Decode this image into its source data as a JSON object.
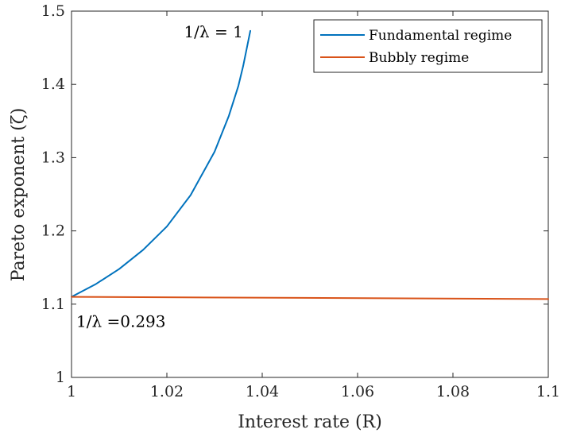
{
  "chart_data": {
    "type": "line",
    "xlabel": "Interest rate (R)",
    "ylabel": "Pareto exponent (ζ)",
    "xlim": [
      1.0,
      1.1
    ],
    "ylim": [
      1.0,
      1.5
    ],
    "xticks": [
      "1",
      "1.02",
      "1.04",
      "1.06",
      "1.08",
      "1.1"
    ],
    "yticks": [
      "1",
      "1.1",
      "1.2",
      "1.3",
      "1.4",
      "1.5"
    ],
    "grid": false,
    "legend": "top-right",
    "series": [
      {
        "name": "Fundamental regime",
        "color": "#0072BD",
        "x": [
          1.0,
          1.005,
          1.01,
          1.015,
          1.02,
          1.025,
          1.03,
          1.033,
          1.035,
          1.036,
          1.0375
        ],
        "y": [
          1.11,
          1.127,
          1.148,
          1.174,
          1.206,
          1.249,
          1.308,
          1.357,
          1.398,
          1.425,
          1.473
        ]
      },
      {
        "name": "Bubbly regime",
        "color": "#D95319",
        "x": [
          1.0,
          1.1
        ],
        "y": [
          1.11,
          1.107
        ]
      }
    ],
    "annotations": [
      {
        "text": "1/λ = 1",
        "x": 1.0373,
        "y": 1.473,
        "anchor": "end"
      },
      {
        "text": "1/λ =0.293",
        "x": 1.001,
        "y": 1.093,
        "anchor": "start"
      }
    ]
  }
}
